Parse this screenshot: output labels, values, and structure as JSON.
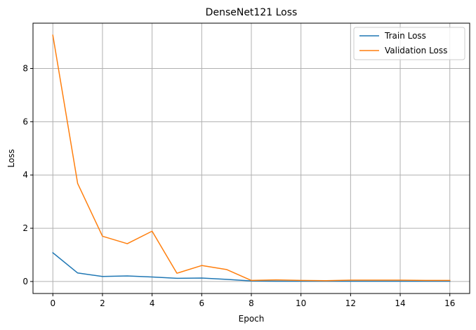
{
  "chart_data": {
    "type": "line",
    "title": "DenseNet121 Loss",
    "xlabel": "Epoch",
    "ylabel": "Loss",
    "x": [
      0,
      1,
      2,
      3,
      4,
      5,
      6,
      7,
      8,
      9,
      10,
      11,
      12,
      13,
      14,
      15,
      16
    ],
    "series": [
      {
        "name": "Train Loss",
        "color": "#1f77b4",
        "values": [
          1.08,
          0.32,
          0.19,
          0.21,
          0.17,
          0.12,
          0.13,
          0.08,
          0.02,
          0.01,
          0.01,
          0.01,
          0.01,
          0.01,
          0.01,
          0.01,
          0.01
        ]
      },
      {
        "name": "Validation Loss",
        "color": "#ff7f0e",
        "values": [
          9.25,
          3.68,
          1.7,
          1.42,
          1.89,
          0.31,
          0.6,
          0.45,
          0.04,
          0.06,
          0.04,
          0.03,
          0.05,
          0.05,
          0.05,
          0.04,
          0.04
        ]
      }
    ],
    "xticks": [
      0,
      2,
      4,
      6,
      8,
      10,
      12,
      14,
      16
    ],
    "yticks": [
      0,
      2,
      4,
      6,
      8
    ],
    "xlim": [
      -0.8,
      16.8
    ],
    "ylim": [
      -0.45,
      9.7
    ],
    "grid": true,
    "legend_position": "upper right"
  }
}
